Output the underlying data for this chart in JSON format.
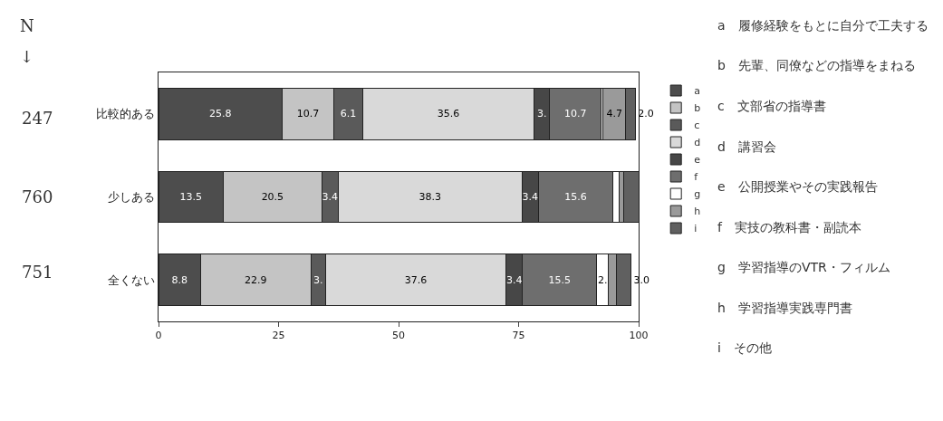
{
  "chart_data": {
    "type": "bar",
    "orientation": "horizontal",
    "stacked": true,
    "categories": [
      "比較的ある",
      "少しある",
      "全くない"
    ],
    "series": [
      {
        "name": "a",
        "color": "#4d4d4d",
        "values": [
          25.8,
          13.5,
          8.8
        ],
        "value_labels": [
          "25.8",
          "13.5",
          "8.8"
        ]
      },
      {
        "name": "b",
        "color": "#c4c4c4",
        "values": [
          10.7,
          20.5,
          22.9
        ],
        "value_labels": [
          "10.7",
          "20.5",
          "22.9"
        ]
      },
      {
        "name": "c",
        "color": "#5a5a5a",
        "values": [
          6.1,
          3.4,
          3.1
        ],
        "value_labels": [
          "6.1",
          "3.4",
          "3."
        ]
      },
      {
        "name": "d",
        "color": "#d9d9d9",
        "values": [
          35.6,
          38.3,
          37.6
        ],
        "value_labels": [
          "35.6",
          "38.3",
          "37.6"
        ]
      },
      {
        "name": "e",
        "color": "#474747",
        "values": [
          3.3,
          3.4,
          3.4
        ],
        "value_labels": [
          "3.",
          "3.4",
          "3.4"
        ]
      },
      {
        "name": "f",
        "color": "#6e6e6e",
        "values": [
          10.7,
          15.6,
          15.5
        ],
        "value_labels": [
          "10.7",
          "15.6",
          "15.5"
        ]
      },
      {
        "name": "g",
        "color": "#ffffff",
        "values": [
          0.4,
          1.2,
          2.4
        ],
        "value_labels": [
          null,
          null,
          "2."
        ]
      },
      {
        "name": "h",
        "color": "#9a9a9a",
        "values": [
          4.7,
          1.0,
          1.7
        ],
        "value_labels": [
          "4.7",
          null,
          null
        ]
      },
      {
        "name": "i",
        "color": "#606060",
        "values": [
          2.0,
          3.1,
          3.0
        ],
        "value_labels": [
          "2.0",
          null,
          "3.0"
        ]
      }
    ],
    "xlim": [
      0,
      100
    ],
    "xticks": [
      0,
      25,
      50,
      75,
      100
    ],
    "legend": "right",
    "annotations": [
      "N",
      "↓",
      "247",
      "760",
      "751",
      "a　履修経験をもとに自分で工夫する",
      "b　先輩、同僚などの指導をまねる",
      "c　文部省の指導書",
      "d　講習会",
      "e　公開授業やその実践報告",
      "f　実技の教科書・副読本",
      "g　学習指導のVTR・フィルム",
      "h　学習指導実践専門書",
      "i　その他"
    ]
  }
}
